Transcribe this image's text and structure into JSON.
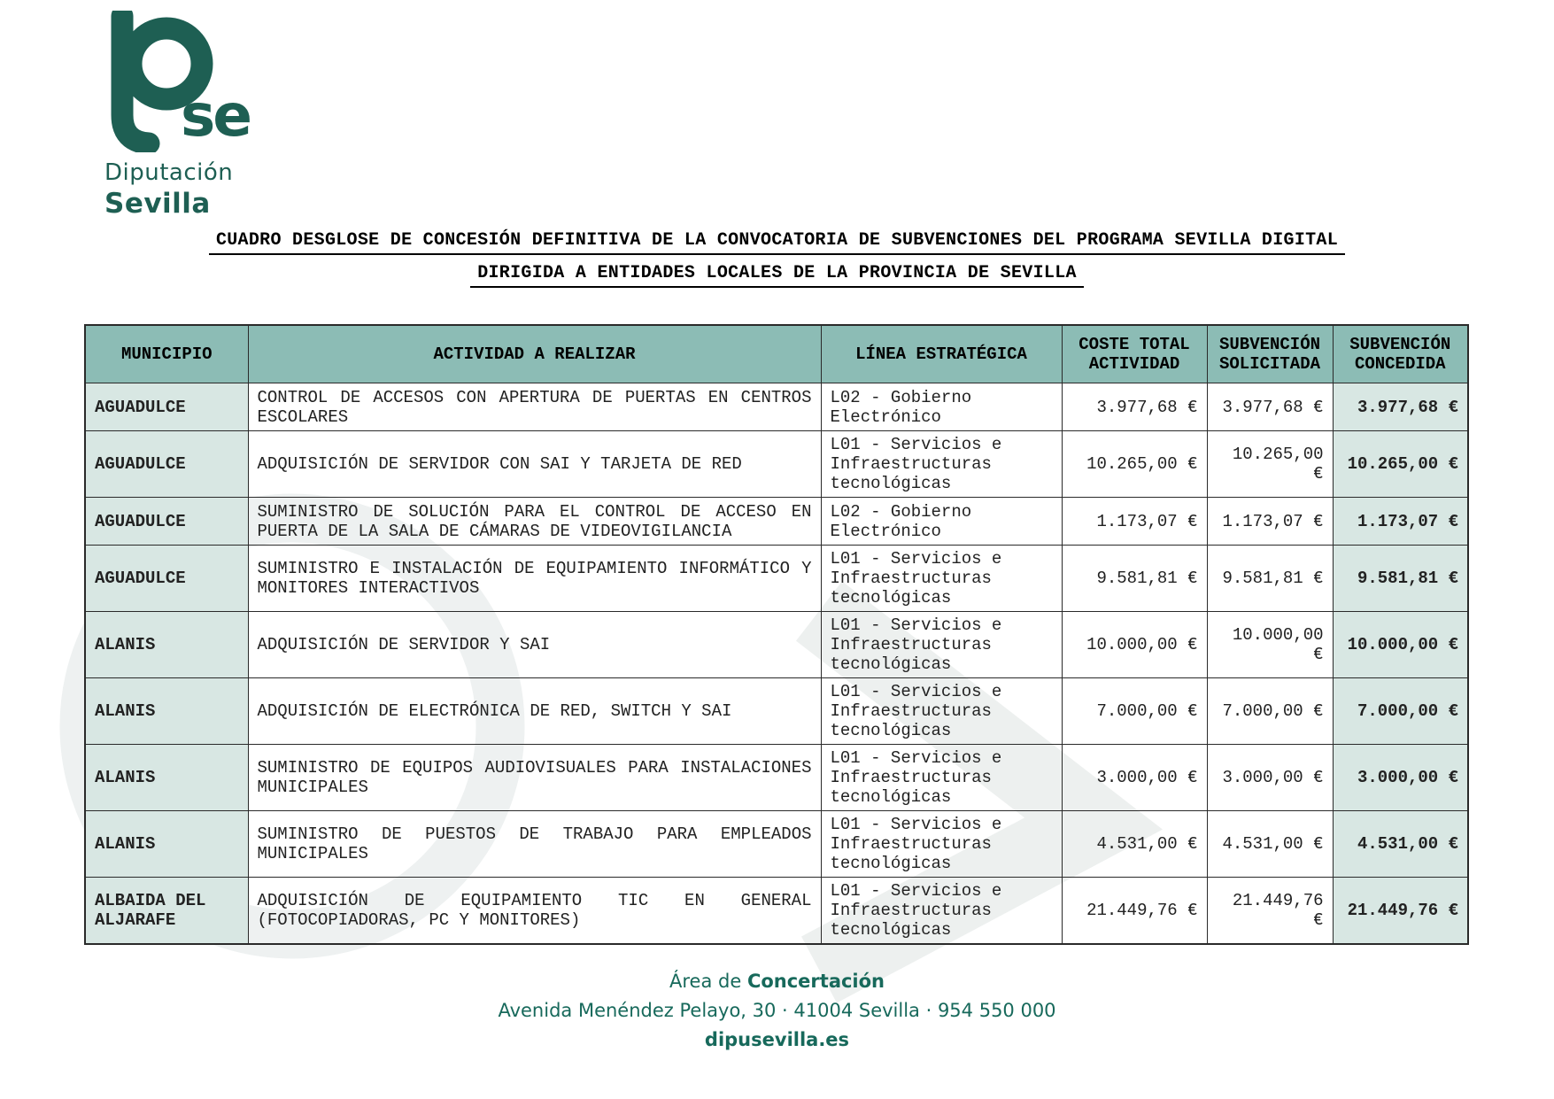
{
  "logo": {
    "mark": "Dse",
    "line1": "Diputación",
    "line2": "Sevilla"
  },
  "title": {
    "line1": "CUADRO DESGLOSE DE CONCESIÓN DEFINITIVA DE LA CONVOCATORIA DE SUBVENCIONES DEL PROGRAMA SEVILLA DIGITAL",
    "line2": "DIRIGIDA A ENTIDADES LOCALES DE LA PROVINCIA DE SEVILLA"
  },
  "table": {
    "headers": [
      "MUNICIPIO",
      "ACTIVIDAD A REALIZAR",
      "LÍNEA ESTRATÉGICA",
      "COSTE TOTAL ACTIVIDAD",
      "SUBVENCIÓN SOLICITADA",
      "SUBVENCIÓN CONCEDIDA"
    ],
    "column_keys": [
      "municipio",
      "actividad",
      "linea",
      "coste",
      "solicitada",
      "concedida"
    ],
    "rows": [
      {
        "municipio": "AGUADULCE",
        "actividad": "CONTROL DE ACCESOS CON APERTURA DE PUERTAS EN CENTROS ESCOLARES",
        "linea": "L02 - Gobierno Electrónico",
        "coste": "3.977,68 €",
        "solicitada": "3.977,68 €",
        "concedida": "3.977,68 €"
      },
      {
        "municipio": "AGUADULCE",
        "actividad": "ADQUISICIÓN DE SERVIDOR CON SAI Y TARJETA DE RED",
        "linea": "L01 - Servicios e Infraestructuras tecnológicas",
        "coste": "10.265,00 €",
        "solicitada": "10.265,00 €",
        "concedida": "10.265,00 €"
      },
      {
        "municipio": "AGUADULCE",
        "actividad": "SUMINISTRO DE SOLUCIÓN PARA EL CONTROL DE ACCESO EN PUERTA DE LA SALA DE CÁMARAS DE VIDEOVIGILANCIA",
        "linea": "L02 - Gobierno Electrónico",
        "coste": "1.173,07 €",
        "solicitada": "1.173,07 €",
        "concedida": "1.173,07 €"
      },
      {
        "municipio": "AGUADULCE",
        "actividad": "SUMINISTRO E INSTALACIÓN DE EQUIPAMIENTO INFORMÁTICO Y MONITORES INTERACTIVOS",
        "linea": "L01 - Servicios e Infraestructuras tecnológicas",
        "coste": "9.581,81 €",
        "solicitada": "9.581,81 €",
        "concedida": "9.581,81 €"
      },
      {
        "municipio": "ALANIS",
        "actividad": "ADQUISICIÓN DE SERVIDOR Y SAI",
        "linea": "L01 - Servicios e Infraestructuras tecnológicas",
        "coste": "10.000,00 €",
        "solicitada": "10.000,00 €",
        "concedida": "10.000,00 €"
      },
      {
        "municipio": "ALANIS",
        "actividad": "ADQUISICIÓN DE ELECTRÓNICA DE RED, SWITCH Y SAI",
        "linea": "L01 - Servicios e Infraestructuras tecnológicas",
        "coste": "7.000,00 €",
        "solicitada": "7.000,00 €",
        "concedida": "7.000,00 €"
      },
      {
        "municipio": "ALANIS",
        "actividad": "SUMINISTRO DE EQUIPOS AUDIOVISUALES PARA INSTALACIONES MUNICIPALES",
        "linea": "L01 - Servicios e Infraestructuras tecnológicas",
        "coste": "3.000,00 €",
        "solicitada": "3.000,00 €",
        "concedida": "3.000,00 €"
      },
      {
        "municipio": "ALANIS",
        "actividad": "SUMINISTRO DE PUESTOS DE TRABAJO PARA EMPLEADOS MUNICIPALES",
        "linea": "L01 - Servicios e Infraestructuras tecnológicas",
        "coste": "4.531,00 €",
        "solicitada": "4.531,00 €",
        "concedida": "4.531,00 €"
      },
      {
        "municipio": "ALBAIDA DEL ALJARAFE",
        "actividad": "ADQUISICIÓN DE EQUIPAMIENTO TIC EN GENERAL (FOTOCOPIADORAS, PC Y MONITORES)",
        "linea": "L01 - Servicios e Infraestructuras tecnológicas",
        "coste": "21.449,76 €",
        "solicitada": "21.449,76 €",
        "concedida": "21.449,76 €"
      }
    ]
  },
  "footer": {
    "area_prefix": "Área de",
    "area_bold": "Concertación",
    "address": "Avenida Menéndez Pelayo, 30  ·  41004 Sevilla  ·  954 550 000",
    "website": "dipusevilla.es"
  },
  "colors": {
    "accent_teal": "#1E5F53",
    "header_bg": "#8CBCB5",
    "highlight_cell_bg": "#D8E7E3",
    "border": "#2A2A2A",
    "watermark_gray": "#EDF0F0"
  }
}
